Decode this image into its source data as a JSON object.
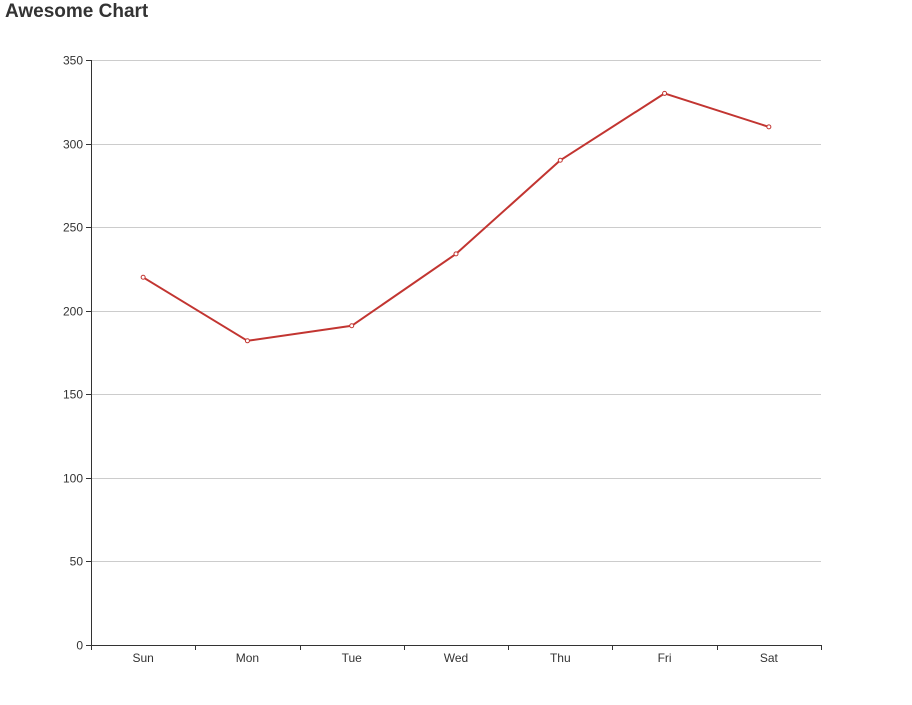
{
  "chart_data": {
    "type": "line",
    "title": "Awesome Chart",
    "categories": [
      "Sun",
      "Mon",
      "Tue",
      "Wed",
      "Thu",
      "Fri",
      "Sat"
    ],
    "series": [
      {
        "values": [
          220,
          182,
          191,
          234,
          290,
          330,
          310
        ]
      }
    ],
    "ylim": [
      0,
      350
    ],
    "yticks": [
      0,
      50,
      100,
      150,
      200,
      250,
      300,
      350
    ],
    "grid": true,
    "legend": "none",
    "colors": {
      "line": "#c23531",
      "grid": "#cccccc",
      "axis": "#333333"
    }
  }
}
